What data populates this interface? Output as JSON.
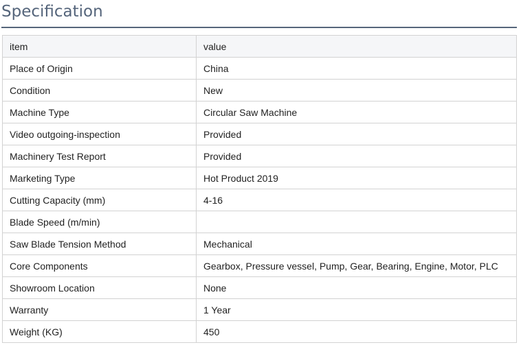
{
  "page_title": "Specification",
  "table": {
    "headers": [
      "item",
      "value"
    ],
    "rows": [
      [
        "Place of Origin",
        "China"
      ],
      [
        "Condition",
        "New"
      ],
      [
        "Machine Type",
        "Circular Saw Machine"
      ],
      [
        "Video outgoing-inspection",
        "Provided"
      ],
      [
        "Machinery Test Report",
        "Provided"
      ],
      [
        "Marketing Type",
        "Hot Product 2019"
      ],
      [
        "Cutting Capacity (mm)",
        "4-16"
      ],
      [
        "Blade Speed (m/min)",
        ""
      ],
      [
        "Saw Blade Tension Method",
        "Mechanical"
      ],
      [
        "Core Components",
        "Gearbox, Pressure vessel, Pump, Gear, Bearing, Engine, Motor, PLC"
      ],
      [
        "Showroom Location",
        "None"
      ],
      [
        "Warranty",
        "1 Year"
      ],
      [
        "Weight (KG)",
        "450"
      ]
    ]
  }
}
